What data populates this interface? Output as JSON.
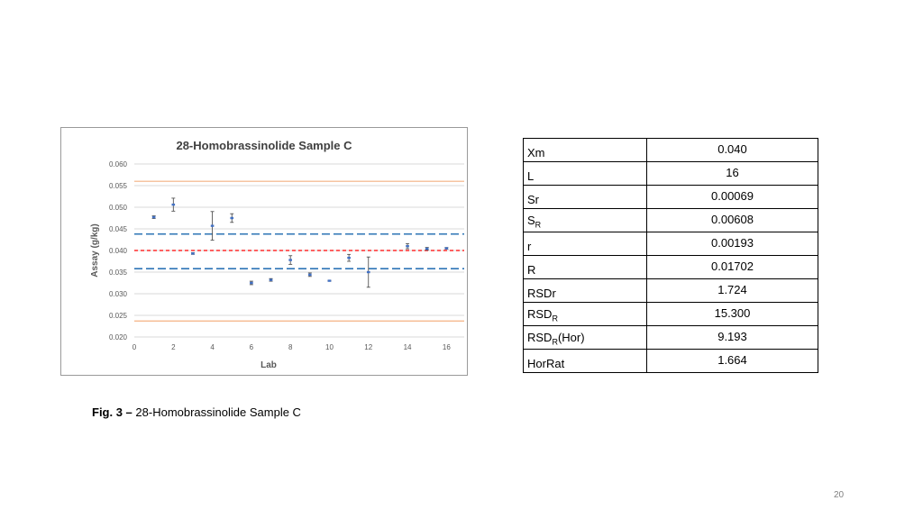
{
  "chart_data": {
    "type": "scatter",
    "title": "28-Homobrassinolide Sample C",
    "xlabel": "Lab",
    "ylabel": "Assay (g/kg)",
    "xlim": [
      0,
      17
    ],
    "ylim": [
      0.02,
      0.06
    ],
    "x_ticks": [
      0,
      2,
      4,
      6,
      8,
      10,
      12,
      14,
      16
    ],
    "y_ticks": [
      "0.020",
      "0.025",
      "0.030",
      "0.035",
      "0.040",
      "0.045",
      "0.050",
      "0.055",
      "0.060"
    ],
    "grid": true,
    "points": [
      {
        "x": 1,
        "y": 0.0477,
        "err": 0.0003
      },
      {
        "x": 2,
        "y": 0.0506,
        "err": 0.0015
      },
      {
        "x": 3,
        "y": 0.0393,
        "err": 0.0002
      },
      {
        "x": 4,
        "y": 0.0457,
        "err": 0.0033
      },
      {
        "x": 5,
        "y": 0.0475,
        "err": 0.001
      },
      {
        "x": 6,
        "y": 0.0325,
        "err": 0.0004
      },
      {
        "x": 7,
        "y": 0.0332,
        "err": 0.0003
      },
      {
        "x": 8,
        "y": 0.0378,
        "err": 0.001
      },
      {
        "x": 9,
        "y": 0.0344,
        "err": 0.0004
      },
      {
        "x": 10,
        "y": 0.033,
        "err": 0.0001
      },
      {
        "x": 11,
        "y": 0.0383,
        "err": 0.0008
      },
      {
        "x": 12,
        "y": 0.035,
        "err": 0.0035
      },
      {
        "x": 14,
        "y": 0.041,
        "err": 0.0006
      },
      {
        "x": 15,
        "y": 0.0404,
        "err": 0.0003
      },
      {
        "x": 16,
        "y": 0.0405,
        "err": 0.0002
      }
    ],
    "reference_lines": [
      {
        "y": 0.04,
        "style": "dashed",
        "color": "#ff0000"
      },
      {
        "y": 0.0438,
        "style": "dashed",
        "color": "#2e75b6"
      },
      {
        "y": 0.0358,
        "style": "dashed",
        "color": "#2e75b6"
      },
      {
        "y": 0.056,
        "style": "solid",
        "color": "#f4b183"
      },
      {
        "y": 0.0237,
        "style": "solid",
        "color": "#f4b183"
      }
    ],
    "point_color": "#4472c4",
    "error_color": "#404040",
    "grid_color": "#d9d9d9",
    "tick_color": "#595959"
  },
  "stats_table": {
    "rows": [
      {
        "label": "Xm",
        "sub": "",
        "suffix": "",
        "value": "0.040"
      },
      {
        "label": "L",
        "sub": "",
        "suffix": "",
        "value": "16"
      },
      {
        "label": "Sr",
        "sub": "",
        "suffix": "",
        "value": "0.00069"
      },
      {
        "label": "S",
        "sub": "R",
        "suffix": "",
        "value": "0.00608"
      },
      {
        "label": "r",
        "sub": "",
        "suffix": "",
        "value": "0.00193"
      },
      {
        "label": "R",
        "sub": "",
        "suffix": "",
        "value": "0.01702"
      },
      {
        "label": "RSDr",
        "sub": "",
        "suffix": "",
        "value": "1.724"
      },
      {
        "label": "RSD",
        "sub": "R",
        "suffix": "",
        "value": "15.300"
      },
      {
        "label": "RSD",
        "sub": "R",
        "suffix": "(Hor)",
        "value": "9.193"
      },
      {
        "label": "HorRat",
        "sub": "",
        "suffix": "",
        "value": "1.664"
      }
    ]
  },
  "caption": {
    "prefix": "Fig. 3 –",
    "text": " 28-Homobrassinolide Sample C"
  },
  "page_number": "20"
}
